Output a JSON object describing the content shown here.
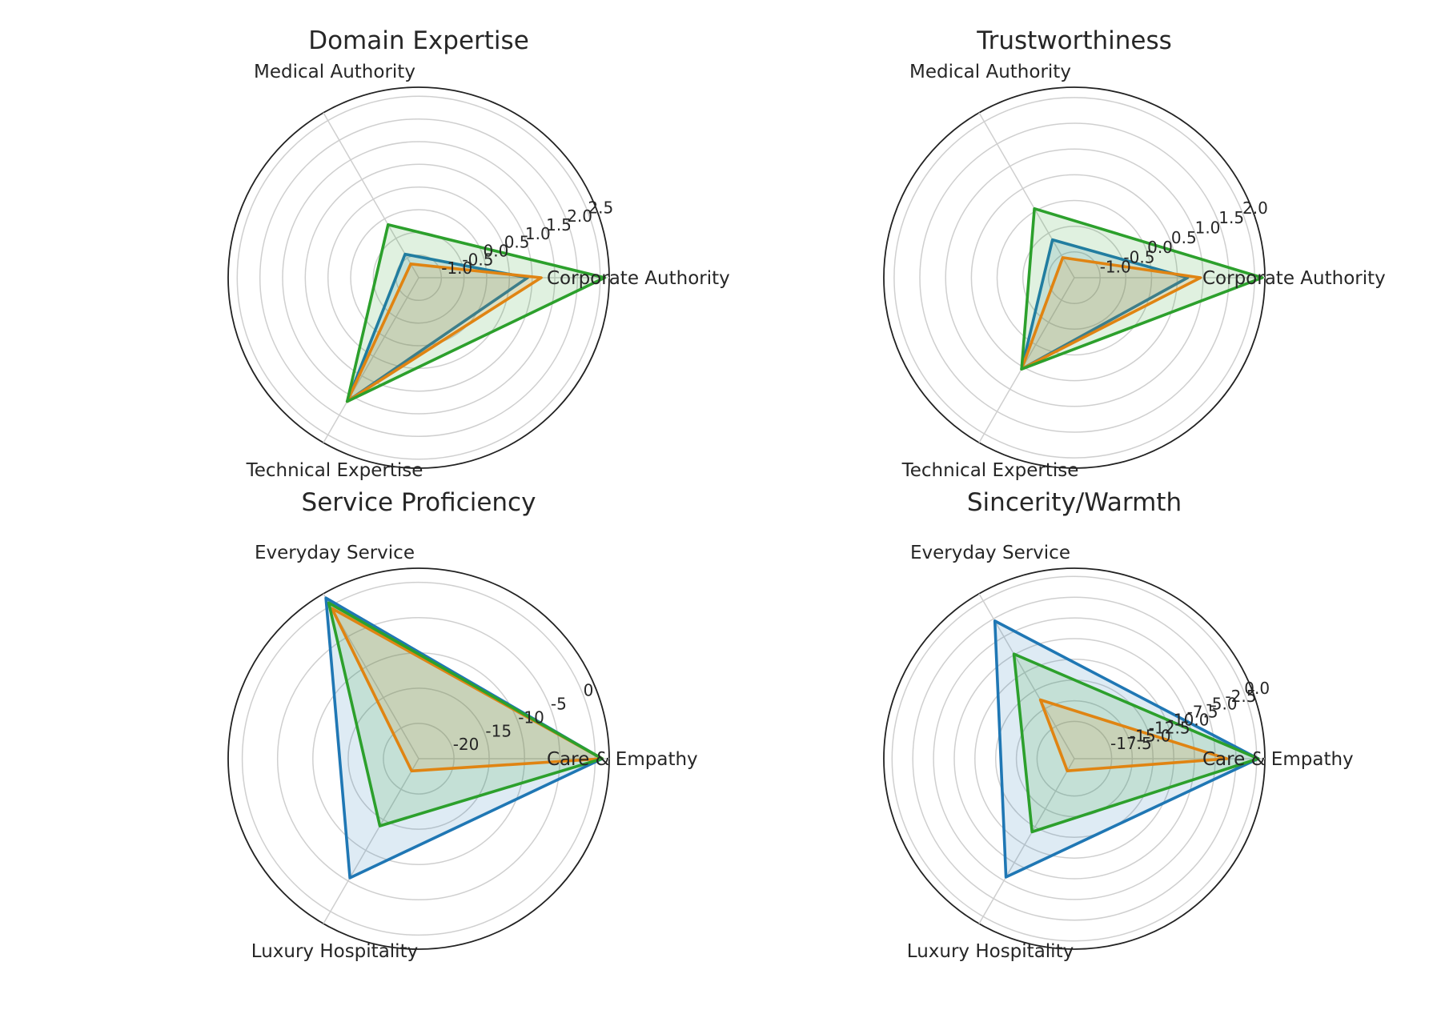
{
  "colors": {
    "series_0": "#1f77b4",
    "series_1": "#ff7f0e",
    "series_2": "#2ca02c"
  },
  "chart_data": [
    {
      "type": "radar",
      "title": "Domain Expertise",
      "categories": [
        "Corporate Authority",
        "Medical Authority",
        "Technical Expertise"
      ],
      "ticks": [
        "-1.0",
        "-0.5",
        "0.0",
        "0.5",
        "1.0",
        "1.5",
        "2.0",
        "2.5"
      ],
      "ylim": [
        -1.5,
        2.7
      ],
      "grid": true,
      "series": [
        {
          "color": "#1f77b4",
          "values": [
            0.9,
            -0.9,
            1.65
          ]
        },
        {
          "color": "#ff7f0e",
          "values": [
            1.2,
            -1.15,
            1.65
          ]
        },
        {
          "color": "#2ca02c",
          "values": [
            2.6,
            -0.15,
            1.65
          ]
        }
      ]
    },
    {
      "type": "radar",
      "title": "Trustworthiness",
      "categories": [
        "Corporate Authority",
        "Medical Authority",
        "Technical Expertise"
      ],
      "ticks": [
        "-1.0",
        "-0.5",
        "0.0",
        "0.5",
        "1.0",
        "1.5",
        "2.0"
      ],
      "ylim": [
        -1.5,
        2.2
      ],
      "grid": true,
      "series": [
        {
          "color": "#1f77b4",
          "values": [
            0.7,
            -0.65,
            0.55
          ]
        },
        {
          "color": "#ff7f0e",
          "values": [
            0.95,
            -1.05,
            0.55
          ]
        },
        {
          "color": "#2ca02c",
          "values": [
            2.15,
            0.05,
            0.55
          ]
        }
      ]
    },
    {
      "type": "radar",
      "title": "Service Proficiency",
      "categories": [
        "Care & Empathy",
        "Everyday Service",
        "Luxury Hospitality"
      ],
      "ticks": [
        "-20",
        "-15",
        "-10",
        "-5",
        "0"
      ],
      "ylim": [
        -25,
        2
      ],
      "grid": true,
      "series": [
        {
          "color": "#1f77b4",
          "values": [
            1.0,
            1.3,
            -5.5
          ]
        },
        {
          "color": "#ff7f0e",
          "values": [
            1.0,
            -0.4,
            -23.0
          ]
        },
        {
          "color": "#2ca02c",
          "values": [
            1.0,
            0.5,
            -14.0
          ]
        }
      ]
    },
    {
      "type": "radar",
      "title": "Sincerity/Warmth",
      "categories": [
        "Care & Empathy",
        "Everyday Service",
        "Luxury Hospitality"
      ],
      "ticks": [
        "-17.5",
        "-15.0",
        "-12.5",
        "-10.0",
        "-7.5",
        "-5.0",
        "-2.5",
        "0.0"
      ],
      "ylim": [
        -22,
        1
      ],
      "grid": true,
      "series": [
        {
          "color": "#1f77b4",
          "values": [
            0.2,
            -2.8,
            -5.5
          ]
        },
        {
          "color": "#ff7f0e",
          "values": [
            -3.6,
            -13.8,
            -20.3
          ]
        },
        {
          "color": "#2ca02c",
          "values": [
            0.2,
            -7.4,
            -11.8
          ]
        }
      ]
    }
  ]
}
